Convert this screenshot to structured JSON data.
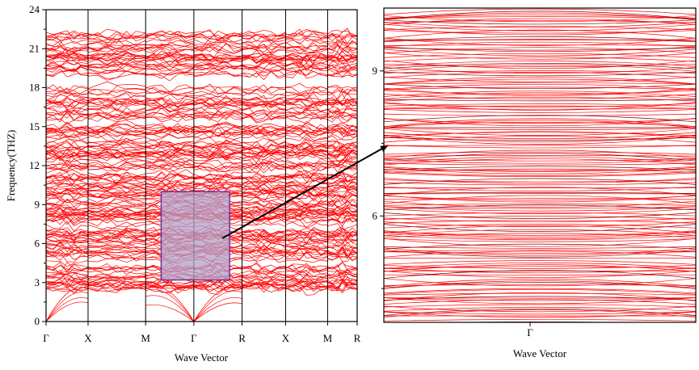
{
  "chart_data": [
    {
      "type": "line",
      "title": "",
      "xlabel": "Wave Vector",
      "ylabel": "Frequency(THZ)",
      "ylim": [
        0,
        24
      ],
      "yticks": [
        0,
        3,
        6,
        9,
        12,
        15,
        18,
        21,
        24
      ],
      "x_high_symmetry_points": [
        "Γ",
        "X",
        "M",
        "Γ",
        "R",
        "X",
        "M",
        "R"
      ],
      "x_positions": [
        0,
        0.135,
        0.32,
        0.475,
        0.63,
        0.77,
        0.905,
        1.0
      ],
      "line_color": "#ff0000",
      "grid": false,
      "legend": "none",
      "bands": {
        "dense_range": [
          2.5,
          22.2
        ],
        "gaps": [
          [
            18.4,
            18.9
          ],
          [
            20.5,
            20.8
          ],
          [
            15.3,
            15.6
          ]
        ],
        "acoustic_max": 2.5,
        "count_approx": 190
      },
      "zoom_box": {
        "x_range": [
          0.37,
          0.59
        ],
        "y_range": [
          3.2,
          10.0
        ],
        "fill": "#b0a0c8",
        "stroke": "#7030a0"
      }
    },
    {
      "type": "line",
      "title": "",
      "xlabel": "Wave Vector",
      "ylabel": "",
      "ylim": [
        3.8,
        10.3
      ],
      "yticks": [
        6,
        9
      ],
      "x_high_symmetry_points": [
        "Γ"
      ],
      "line_color": "#ff0000",
      "grid": false,
      "legend": "none",
      "bands": {
        "count_approx": 170
      }
    }
  ]
}
